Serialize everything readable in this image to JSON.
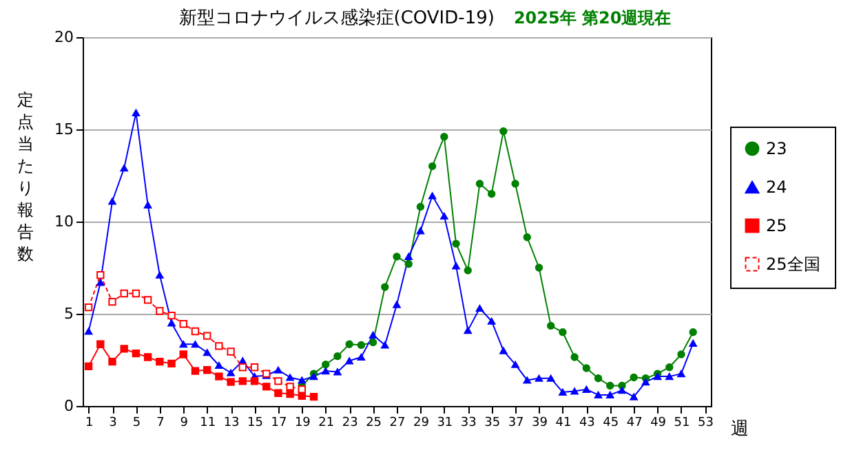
{
  "chart_data": {
    "type": "line",
    "title": "新型コロナウイルス感染症(COVID-19)",
    "subtitle": "2025年 第20週現在",
    "xlabel": "週",
    "ylabel": "定点当たり報告数",
    "xlim": [
      0.5,
      53.5
    ],
    "xticks": [
      1,
      3,
      5,
      7,
      9,
      11,
      13,
      15,
      17,
      19,
      21,
      23,
      25,
      27,
      29,
      31,
      33,
      35,
      37,
      39,
      41,
      43,
      45,
      47,
      49,
      51,
      53
    ],
    "ylim": [
      0,
      20
    ],
    "yticks": [
      0,
      5,
      10,
      15,
      20
    ],
    "grid": "y",
    "legend": "right",
    "series": [
      {
        "name": "23",
        "color": "#008000",
        "marker": "circle",
        "line_style": "solid",
        "x": [
          19,
          20,
          21,
          22,
          23,
          24,
          25,
          26,
          27,
          28,
          29,
          30,
          31,
          32,
          33,
          34,
          35,
          36,
          37,
          38,
          39,
          40,
          41,
          42,
          43,
          44,
          45,
          46,
          47,
          48,
          49,
          50,
          51,
          52
        ],
        "values": [
          1.1,
          1.75,
          2.25,
          2.7,
          3.35,
          3.3,
          3.45,
          6.45,
          8.1,
          7.7,
          10.8,
          13.0,
          14.6,
          8.8,
          7.35,
          12.05,
          11.5,
          14.9,
          12.05,
          9.15,
          7.5,
          4.35,
          4.0,
          2.65,
          2.05,
          1.5,
          1.1,
          1.1,
          1.55,
          1.5,
          1.75,
          2.1,
          2.8,
          4.0
        ]
      },
      {
        "name": "24",
        "color": "#0000ff",
        "marker": "triangle",
        "line_style": "solid",
        "x": [
          1,
          2,
          3,
          4,
          5,
          6,
          7,
          8,
          9,
          10,
          11,
          12,
          13,
          14,
          15,
          16,
          17,
          18,
          19,
          20,
          21,
          22,
          23,
          24,
          25,
          26,
          27,
          28,
          29,
          30,
          31,
          32,
          33,
          34,
          35,
          36,
          37,
          38,
          39,
          40,
          41,
          42,
          43,
          44,
          45,
          46,
          47,
          48,
          49,
          50,
          51,
          52
        ],
        "values": [
          4.05,
          6.7,
          11.1,
          12.9,
          15.9,
          10.9,
          7.1,
          4.5,
          3.35,
          3.35,
          2.9,
          2.2,
          1.8,
          2.45,
          1.6,
          1.65,
          1.95,
          1.55,
          1.4,
          1.6,
          1.9,
          1.85,
          2.45,
          2.65,
          3.85,
          3.3,
          5.5,
          8.1,
          9.5,
          11.4,
          10.3,
          7.6,
          4.1,
          5.3,
          4.6,
          3.0,
          2.25,
          1.4,
          1.5,
          1.5,
          0.75,
          0.8,
          0.9,
          0.6,
          0.6,
          0.85,
          0.5,
          1.3,
          1.6,
          1.6,
          1.75,
          3.4
        ]
      },
      {
        "name": "25",
        "color": "#ff0000",
        "marker": "square",
        "line_style": "solid",
        "x": [
          1,
          2,
          3,
          4,
          5,
          6,
          7,
          8,
          9,
          10,
          11,
          12,
          13,
          14,
          15,
          16,
          17,
          18,
          19,
          20
        ],
        "values": [
          2.15,
          3.35,
          2.4,
          3.1,
          2.85,
          2.65,
          2.4,
          2.3,
          2.8,
          1.9,
          1.95,
          1.6,
          1.3,
          1.35,
          1.35,
          1.05,
          0.7,
          0.65,
          0.55,
          0.5
        ]
      },
      {
        "name": "25全国",
        "color": "#ff0000",
        "marker": "square",
        "line_style": "dashed",
        "x": [
          1,
          2,
          3,
          4,
          5,
          6,
          7,
          8,
          9,
          10,
          11,
          12,
          13,
          14,
          15,
          16,
          17,
          18,
          19
        ],
        "values": [
          5.35,
          7.1,
          5.65,
          6.1,
          6.1,
          5.75,
          5.15,
          4.9,
          4.45,
          4.05,
          3.8,
          3.25,
          2.95,
          2.1,
          2.1,
          1.75,
          1.35,
          1.05,
          0.9
        ]
      }
    ]
  }
}
